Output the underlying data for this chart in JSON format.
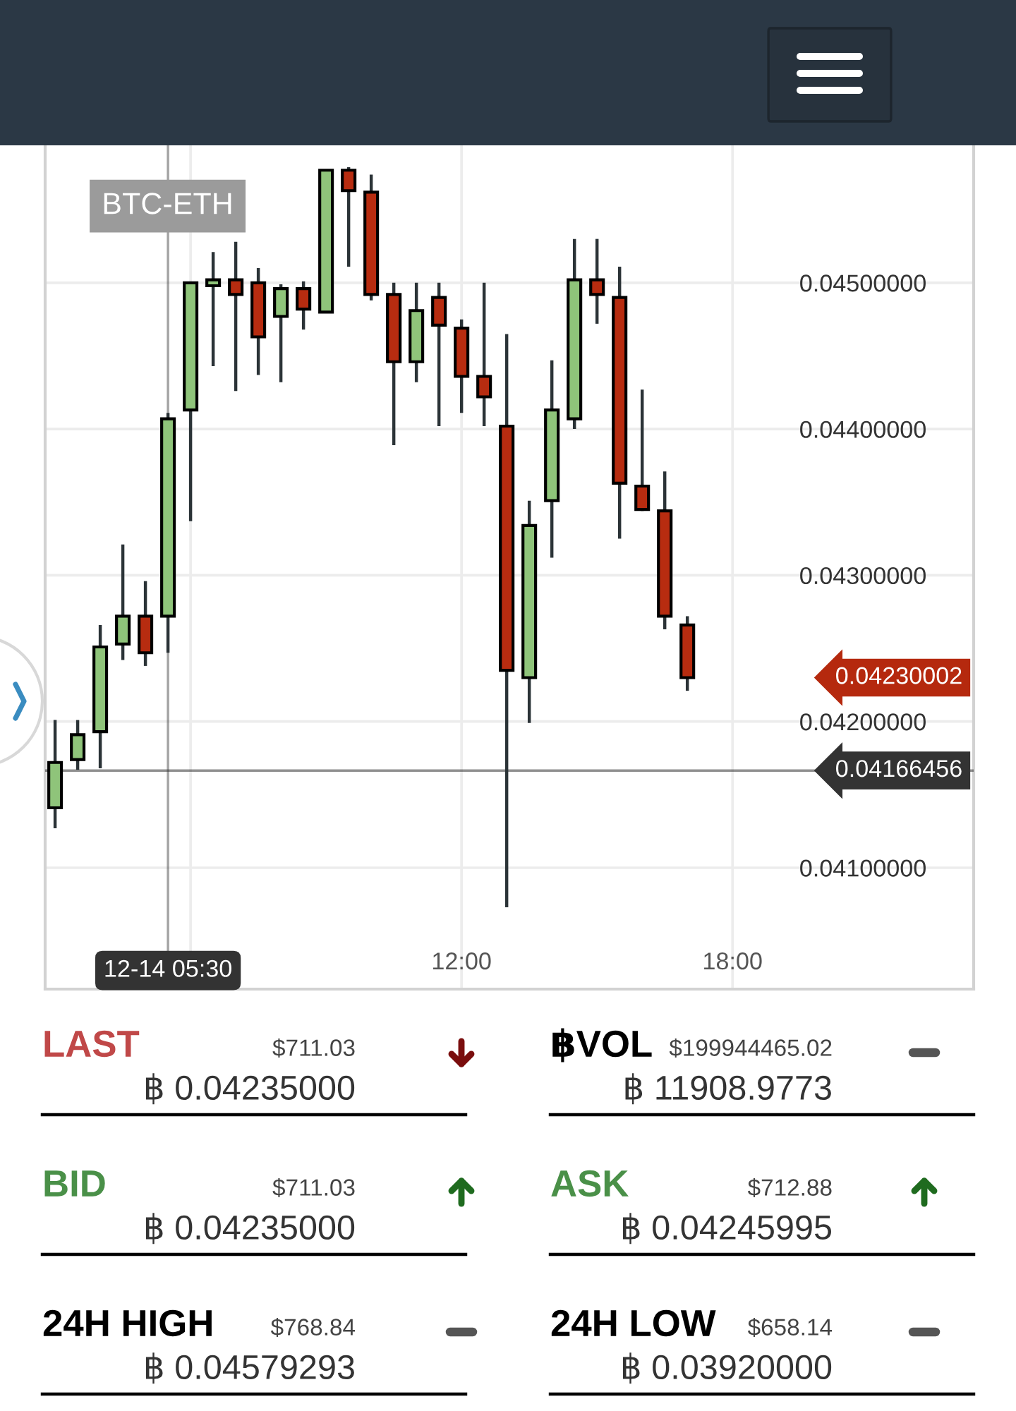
{
  "chart_data": [
    {
      "type": "candlestick",
      "title": "BTC-ETH",
      "x": [
        3.0,
        3.5,
        4.0,
        4.5,
        5.0,
        5.5,
        6.0,
        6.5,
        7.0,
        7.5,
        8.0,
        8.5,
        9.0,
        9.5,
        10.0,
        10.5,
        11.0,
        11.5,
        12.0,
        12.5,
        13.0,
        13.5,
        14.0,
        14.5,
        15.0,
        15.5,
        16.0,
        16.5,
        17.0
      ],
      "ohlc": [
        [
          0.04141,
          0.04201,
          0.04127,
          0.04172
        ],
        [
          0.04174,
          0.04201,
          0.04167,
          0.04191
        ],
        [
          0.04193,
          0.04266,
          0.04168,
          0.04251
        ],
        [
          0.04253,
          0.04321,
          0.04242,
          0.04272
        ],
        [
          0.04272,
          0.04296,
          0.04238,
          0.04247
        ],
        [
          0.04272,
          0.04411,
          0.04247,
          0.04407
        ],
        [
          0.04413,
          0.045,
          0.04337,
          0.045
        ],
        [
          0.04498,
          0.04521,
          0.04443,
          0.04502
        ],
        [
          0.04502,
          0.04528,
          0.04426,
          0.04492
        ],
        [
          0.045,
          0.0451,
          0.04437,
          0.04463
        ],
        [
          0.04477,
          0.04499,
          0.04432,
          0.04496
        ],
        [
          0.04496,
          0.04501,
          0.04468,
          0.04482
        ],
        [
          0.0448,
          0.04577,
          0.0448,
          0.04577
        ],
        [
          0.04577,
          0.04579,
          0.04511,
          0.04563
        ],
        [
          0.04562,
          0.04574,
          0.04488,
          0.04492
        ],
        [
          0.04492,
          0.045,
          0.04389,
          0.04446
        ],
        [
          0.04446,
          0.045,
          0.04432,
          0.04481
        ],
        [
          0.0449,
          0.045,
          0.04402,
          0.04471
        ],
        [
          0.04469,
          0.04475,
          0.04411,
          0.04436
        ],
        [
          0.04436,
          0.045,
          0.04402,
          0.04422
        ],
        [
          0.04402,
          0.04465,
          0.04073,
          0.04235
        ],
        [
          0.0423,
          0.04351,
          0.04199,
          0.04334
        ],
        [
          0.04351,
          0.04447,
          0.04312,
          0.04413
        ],
        [
          0.04407,
          0.0453,
          0.044,
          0.04502
        ],
        [
          0.04502,
          0.0453,
          0.04472,
          0.04492
        ],
        [
          0.0449,
          0.04511,
          0.04325,
          0.04363
        ],
        [
          0.04361,
          0.04427,
          0.04344,
          0.04345
        ],
        [
          0.04344,
          0.04371,
          0.04263,
          0.04272
        ],
        [
          0.04266,
          0.04272,
          0.04221,
          0.0423
        ]
      ],
      "colors": [
        "#8fc47a",
        "#8fc47a",
        "#8fc47a",
        "#8fc47a",
        "#b72c10",
        "#8fc47a",
        "#8fc47a",
        "#8fc47a",
        "#b72c10",
        "#b72c10",
        "#8fc47a",
        "#b72c10",
        "#8fc47a",
        "#b72c10",
        "#b72c10",
        "#b72c10",
        "#8fc47a",
        "#b72c10",
        "#b72c10",
        "#b72c10",
        "#b72c10",
        "#8fc47a",
        "#8fc47a",
        "#8fc47a",
        "#b72c10",
        "#b72c10",
        "#b72c10",
        "#b72c10",
        "#b72c10"
      ],
      "xlim": [
        2.78,
        23.34
      ],
      "xticks": [
        {
          "value": 6,
          "label": null
        },
        {
          "value": 12,
          "label": "12:00"
        },
        {
          "value": 18,
          "label": "18:00"
        }
      ],
      "ylim": [
        0.04017,
        0.04594
      ],
      "yticks": [
        {
          "value": 0.041,
          "label": "0.04100000"
        },
        {
          "value": 0.042,
          "label": "0.04200000"
        },
        {
          "value": 0.043,
          "label": "0.04300000"
        },
        {
          "value": 0.044,
          "label": "0.04400000"
        },
        {
          "value": 0.045,
          "label": "0.04500000"
        }
      ],
      "grid": true,
      "ref_lines": [
        {
          "axis": "y",
          "value": 0.04166456,
          "label": "0.04166456",
          "color": "#333333"
        },
        {
          "axis": "x",
          "value": 5.5,
          "label": "12-14 05:30",
          "color": "#333333"
        }
      ],
      "annotations": [
        "0.04230002"
      ]
    },
    {
      "type": "other",
      "colors": [
        "#c04848",
        "#000000",
        "#4a9048",
        "#4a9048",
        "#000000",
        "#000000"
      ],
      "annotations": [
        "LAST",
        "$711.03",
        "฿ 0.04235000",
        "฿VOL",
        "$199944465.02",
        "฿ 11908.9773",
        "BID",
        "$711.03",
        "฿ 0.04235000",
        "ASK",
        "$712.88",
        "฿ 0.04245995",
        "24H HIGH",
        "$768.84",
        "฿ 0.04579293",
        "24H LOW",
        "$658.14",
        "฿ 0.03920000"
      ]
    }
  ]
}
